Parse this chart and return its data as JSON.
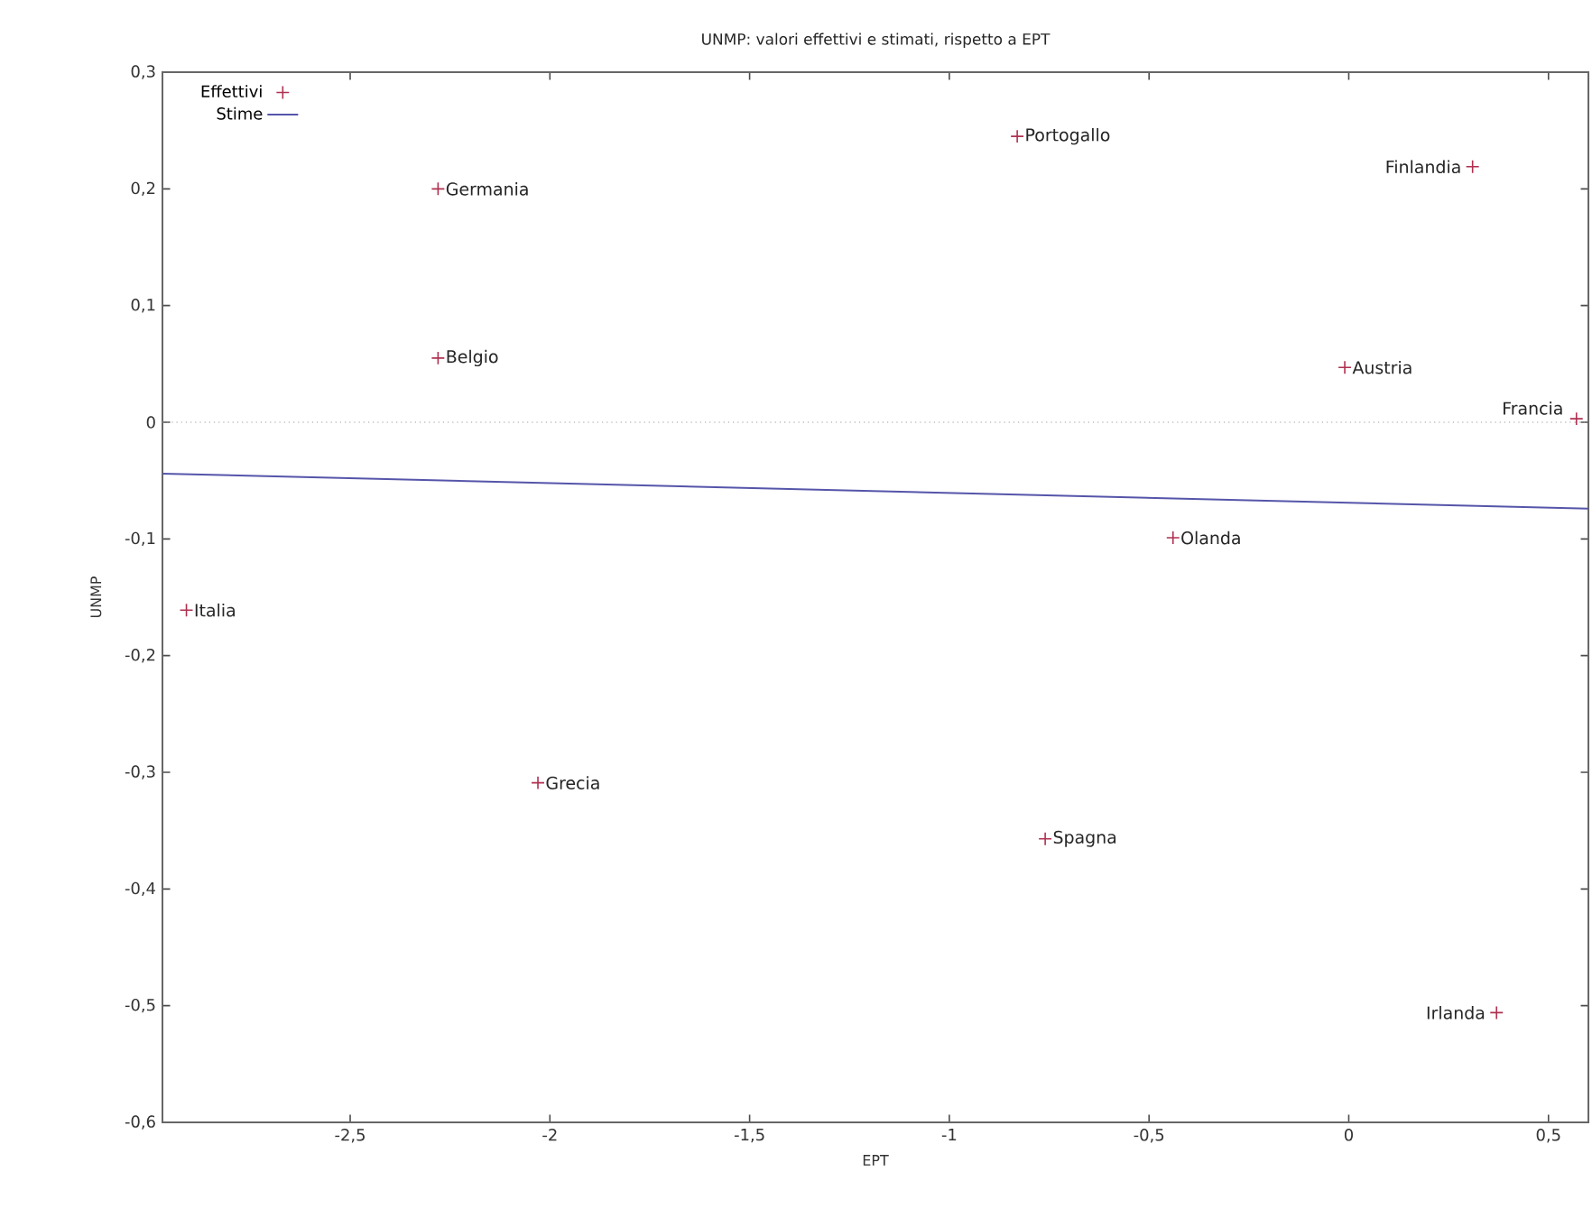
{
  "chart_data": {
    "type": "scatter",
    "title": "UNMP: valori effettivi e stimati, rispetto a EPT",
    "xlabel": "EPT",
    "ylabel": "UNMP",
    "xlim": [
      -2.97,
      0.6
    ],
    "ylim": [
      -0.6,
      0.3
    ],
    "xticks": [
      {
        "value": -2.5,
        "label": "-2,5"
      },
      -2,
      {
        "value": -1.5,
        "label": "-1,5"
      },
      -1,
      {
        "value": -0.5,
        "label": "-0,5"
      },
      0,
      {
        "value": 0.5,
        "label": "0,5"
      }
    ],
    "yticks": [
      {
        "value": -0.6,
        "label": "-0,6"
      },
      {
        "value": -0.5,
        "label": "-0,5"
      },
      {
        "value": -0.4,
        "label": "-0,4"
      },
      {
        "value": -0.3,
        "label": "-0,3"
      },
      {
        "value": -0.2,
        "label": "-0,2"
      },
      {
        "value": -0.1,
        "label": "-0,1"
      },
      0,
      {
        "value": 0.1,
        "label": "0,1"
      },
      {
        "value": 0.2,
        "label": "0,2"
      },
      {
        "value": 0.3,
        "label": "0,3"
      }
    ],
    "legend": "top left",
    "series": [
      {
        "name": "Effettivi",
        "color": "#b03050",
        "marker": "cross",
        "x": [
          -2.28,
          -2.28,
          -2.91,
          -2.03,
          -0.83,
          0.31,
          -0.01,
          0.57,
          -0.44,
          -0.76,
          0.37
        ],
        "values": [
          0.2,
          0.055,
          -0.161,
          -0.309,
          0.245,
          0.219,
          0.047,
          0.003,
          -0.099,
          -0.357,
          -0.506
        ]
      },
      {
        "name": "Stime",
        "type": "line",
        "color": "#5555aa",
        "x": [
          -2.97,
          0.6
        ],
        "values": [
          -0.044,
          -0.074
        ]
      }
    ],
    "ref_lines": [
      {
        "axis": "y",
        "value": 0,
        "color": "#999999",
        "line_style": "dotted"
      }
    ],
    "annotations": [
      {
        "text": "Germania",
        "x": -2.28,
        "y": 0.2
      },
      {
        "text": "Belgio",
        "x": -2.28,
        "y": 0.055
      },
      {
        "text": "Italia",
        "x": -2.91,
        "y": -0.161
      },
      {
        "text": "Grecia",
        "x": -2.03,
        "y": -0.309
      },
      {
        "text": "Portogallo",
        "x": -0.83,
        "y": 0.245
      },
      {
        "text": "Finlandia",
        "x": 0.31,
        "y": 0.219
      },
      {
        "text": "Austria",
        "x": -0.01,
        "y": 0.047
      },
      {
        "text": "Francia",
        "x": 0.57,
        "y": 0.003
      },
      {
        "text": "Olanda",
        "x": -0.44,
        "y": -0.099
      },
      {
        "text": "Spagna",
        "x": -0.76,
        "y": -0.357
      },
      {
        "text": "Irlanda",
        "x": 0.37,
        "y": -0.506
      }
    ]
  }
}
